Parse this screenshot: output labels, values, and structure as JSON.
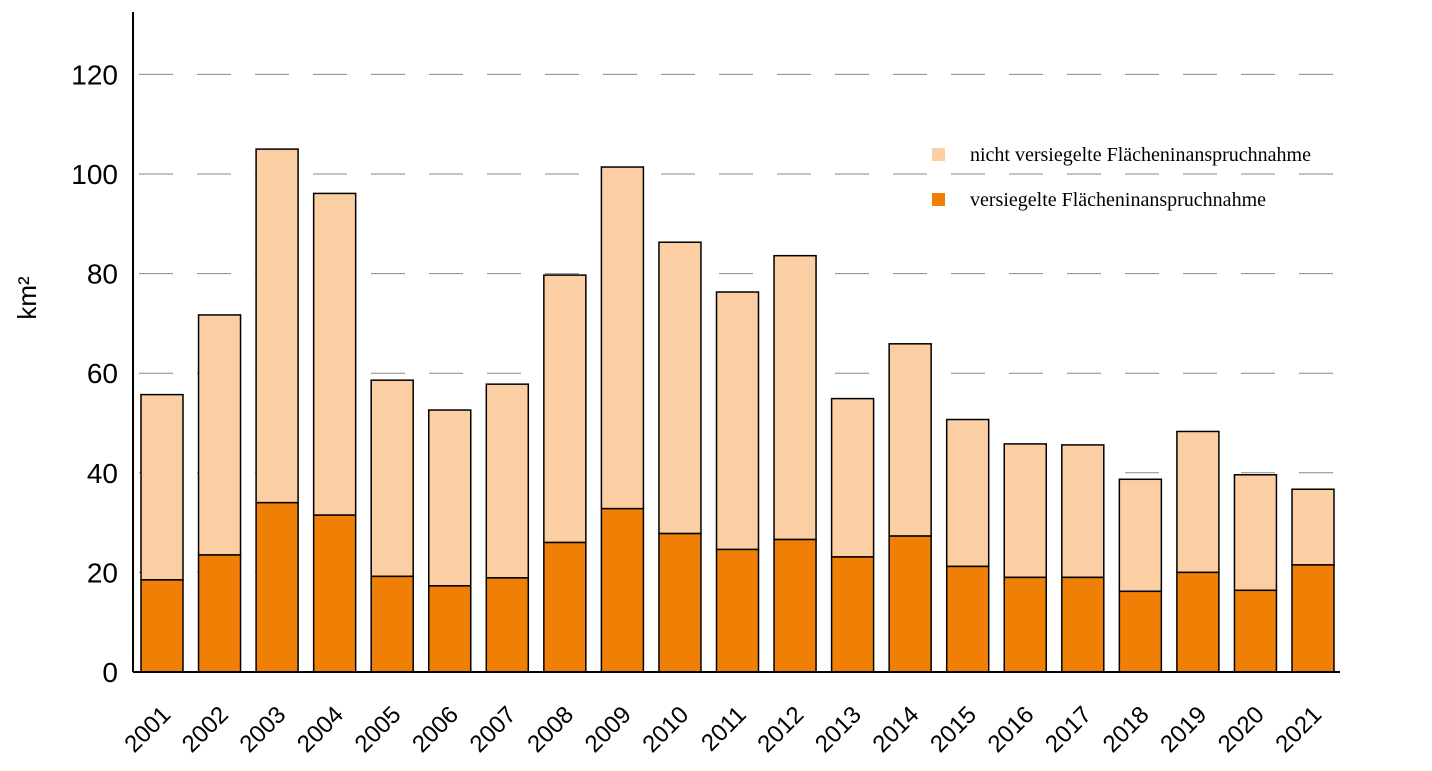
{
  "chart_data": {
    "type": "bar",
    "stacked": true,
    "title": "",
    "xlabel": "",
    "ylabel": "km²",
    "ylim": [
      0,
      130
    ],
    "yticks": [
      0,
      20,
      40,
      60,
      80,
      100,
      120
    ],
    "grid": true,
    "legend_position": "top-right",
    "categories": [
      "2001",
      "2002",
      "2003",
      "2004",
      "2005",
      "2006",
      "2007",
      "2008",
      "2009",
      "2010",
      "2011",
      "2012",
      "2013",
      "2014",
      "2015",
      "2016",
      "2017",
      "2018",
      "2019",
      "2020",
      "2021"
    ],
    "series": [
      {
        "name": "versiegelte Flächeninanspruchnahme",
        "color": "#f08005",
        "values": [
          18.5,
          23.5,
          34.0,
          31.5,
          19.2,
          17.3,
          18.9,
          26.0,
          32.8,
          27.8,
          24.6,
          26.6,
          23.1,
          27.3,
          21.2,
          19.0,
          19.0,
          16.2,
          20.0,
          16.4,
          21.5
        ]
      },
      {
        "name": "nicht versiegelte Flächeninanspruchnahme",
        "color": "#fbcea4",
        "values": [
          37.2,
          48.2,
          71.0,
          64.6,
          39.4,
          35.3,
          38.9,
          53.7,
          68.6,
          58.5,
          51.7,
          57.0,
          31.8,
          38.6,
          29.5,
          26.8,
          26.6,
          22.5,
          28.3,
          23.2,
          15.2
        ]
      }
    ]
  }
}
